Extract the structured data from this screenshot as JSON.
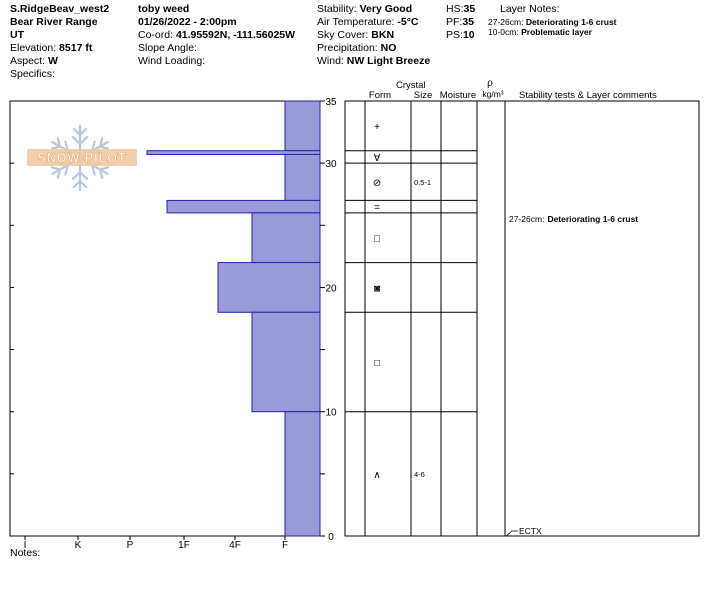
{
  "header": {
    "col1": {
      "title": "S.RidgeBeav_west2",
      "range": "Bear River Range",
      "state": "UT",
      "elevation_label": "Elevation:",
      "elevation_value": "8517 ft",
      "aspect_label": "Aspect:",
      "aspect_value": "W",
      "specifics_label": "Specifics:"
    },
    "col2": {
      "observer": "toby weed",
      "datetime": "01/26/2022 - 2:00pm",
      "coord_label": "Co-ord:",
      "coord_value": "41.95592N, -111.56025W",
      "slope_label": "Slope Angle:",
      "wind_loading_label": "Wind Loading:"
    },
    "col3": {
      "stability_label": "Stability:",
      "stability_value": "Very Good",
      "air_temp_label": "Air Temperature:",
      "air_temp_value": "-5°C",
      "sky_label": "Sky Cover:",
      "sky_value": "BKN",
      "precip_label": "Precipitation:",
      "precip_value": "NO",
      "wind_label": "Wind:",
      "wind_value": "NW Light Breeze"
    },
    "col4": {
      "hs_label": "HS:",
      "hs_value": "35",
      "pf_label": "PF:",
      "pf_value": "35",
      "ps_label": "PS:",
      "ps_value": "10"
    },
    "layer_notes": {
      "title": "Layer Notes:",
      "items": [
        {
          "depth": "27-26cm:",
          "text": "Deteriorating 1-6 crust"
        },
        {
          "depth": "10-0cm:",
          "text": "Problematic layer"
        }
      ]
    }
  },
  "logo_text": "SNOW PILOT",
  "notes_label": "Notes:",
  "table_headers": {
    "form": "Form",
    "crystal": "Crystal",
    "size": "Size",
    "moisture": "Moisture",
    "rho": "ρ",
    "density_unit": "kg/m³",
    "stability": "Stability tests & Layer comments"
  },
  "stability_comment": {
    "depth": "27-26cm:",
    "text": "Deteriorating 1-6 crust"
  },
  "test_result": "ECTX",
  "colors": {
    "bar_fill": "#9a9ad8",
    "bar_stroke": "#2222aa"
  },
  "chart_data": {
    "type": "bar",
    "orientation": "horizontal",
    "y_axis": {
      "label": "",
      "range": [
        0,
        35
      ],
      "ticks": [
        0,
        10,
        20,
        30,
        35
      ]
    },
    "x_axis": {
      "label": "",
      "categories": [
        "I",
        "K",
        "P",
        "1F",
        "4F",
        "F"
      ],
      "direction": "reversed"
    },
    "hardness_layers": [
      {
        "top": 35,
        "bottom": 31,
        "hardness": "F"
      },
      {
        "top": 31,
        "bottom": 30.7,
        "hardness": "P-"
      },
      {
        "top": 30.7,
        "bottom": 27,
        "hardness": "F"
      },
      {
        "top": 27,
        "bottom": 26,
        "hardness": "1F+"
      },
      {
        "top": 26,
        "bottom": 22,
        "hardness": "4F-"
      },
      {
        "top": 22,
        "bottom": 18,
        "hardness": "4F+"
      },
      {
        "top": 18,
        "bottom": 10,
        "hardness": "4F-"
      },
      {
        "top": 10,
        "bottom": 0,
        "hardness": "F"
      }
    ],
    "layers": [
      {
        "top": 35,
        "bottom": 31,
        "form": "+",
        "size": ""
      },
      {
        "top": 31,
        "bottom": 30,
        "form": "∀",
        "size": ""
      },
      {
        "top": 30,
        "bottom": 27,
        "form": "⊘",
        "size": "0.5-1"
      },
      {
        "top": 27,
        "bottom": 26,
        "form": "=",
        "size": ""
      },
      {
        "top": 26,
        "bottom": 22,
        "form": "□",
        "size": ""
      },
      {
        "top": 22,
        "bottom": 18,
        "form": "◙",
        "size": ""
      },
      {
        "top": 18,
        "bottom": 10,
        "form": "□",
        "size": ""
      },
      {
        "top": 10,
        "bottom": 0,
        "form": "∧",
        "size": "4-6"
      }
    ]
  }
}
